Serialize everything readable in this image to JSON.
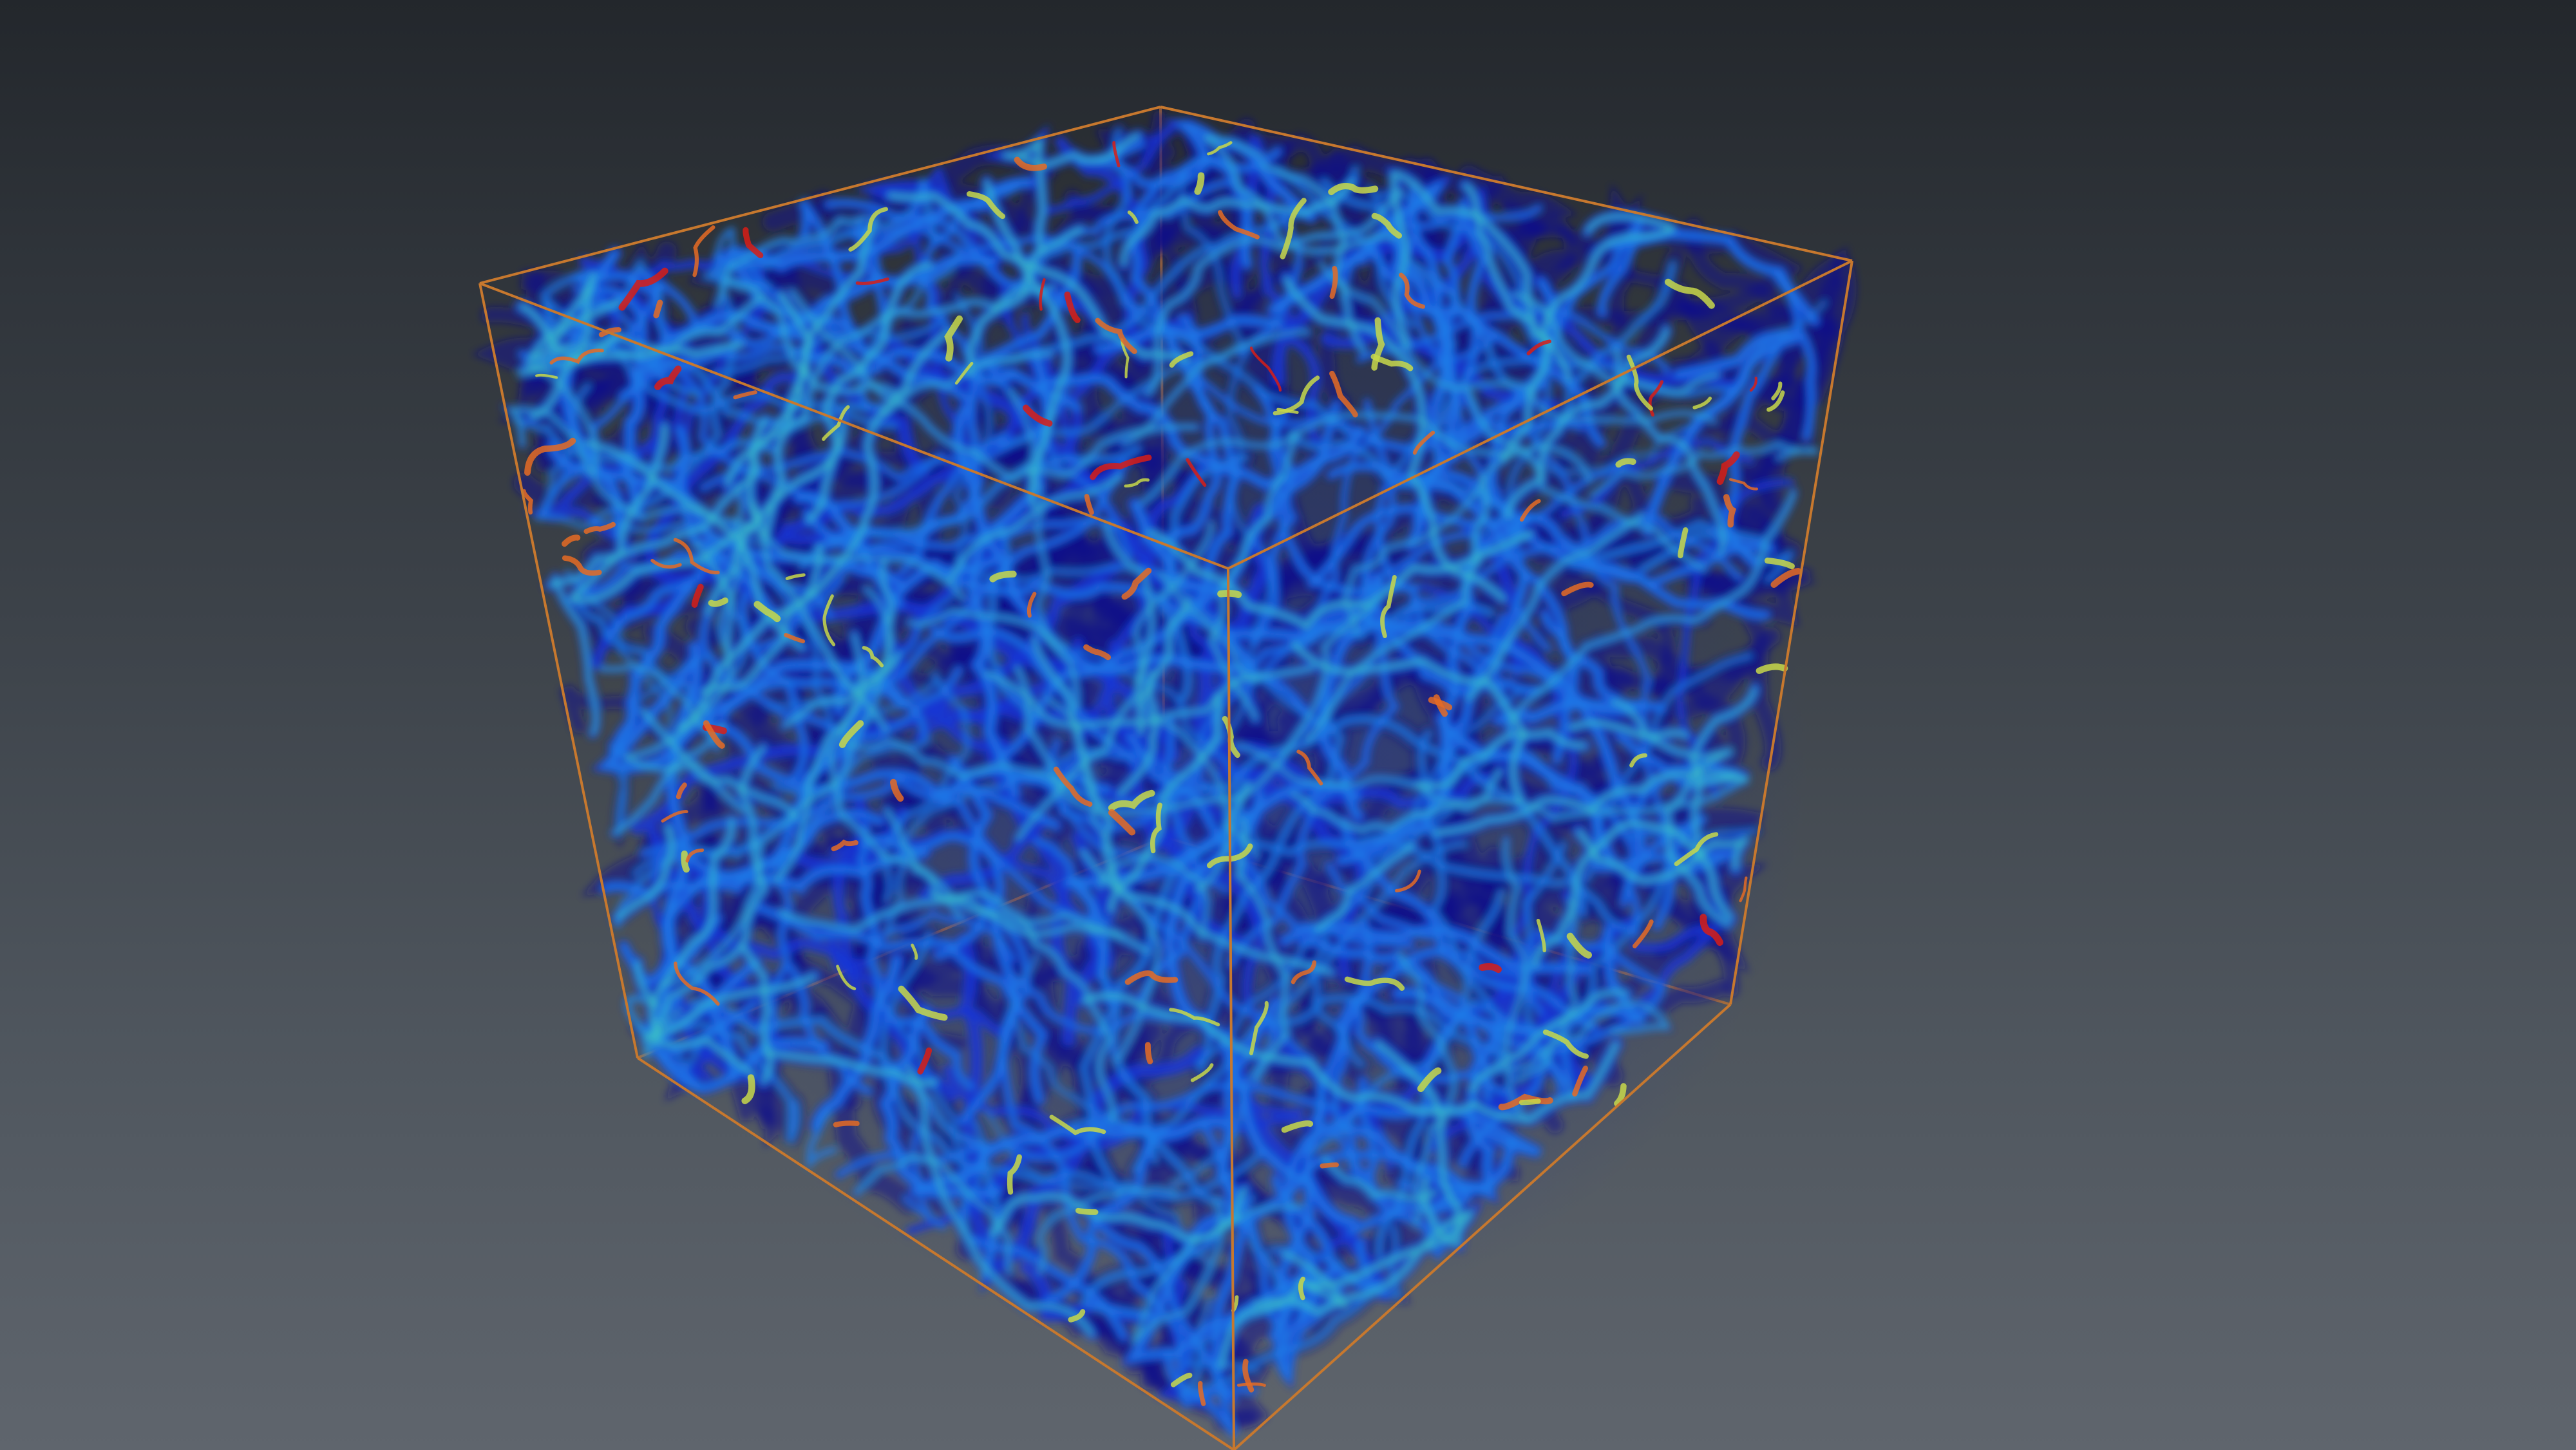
{
  "viewer": {
    "background_top": "#23272c",
    "background_bottom": "#5f656d",
    "bounding_box_color": "#c7782e"
  },
  "volume": {
    "colormap": [
      "#10108a",
      "#1436d6",
      "#1f7de8",
      "#3cc7c4",
      "#c8d84a",
      "#e56b24",
      "#d81d16"
    ],
    "dominant_color": "#1436d6"
  }
}
